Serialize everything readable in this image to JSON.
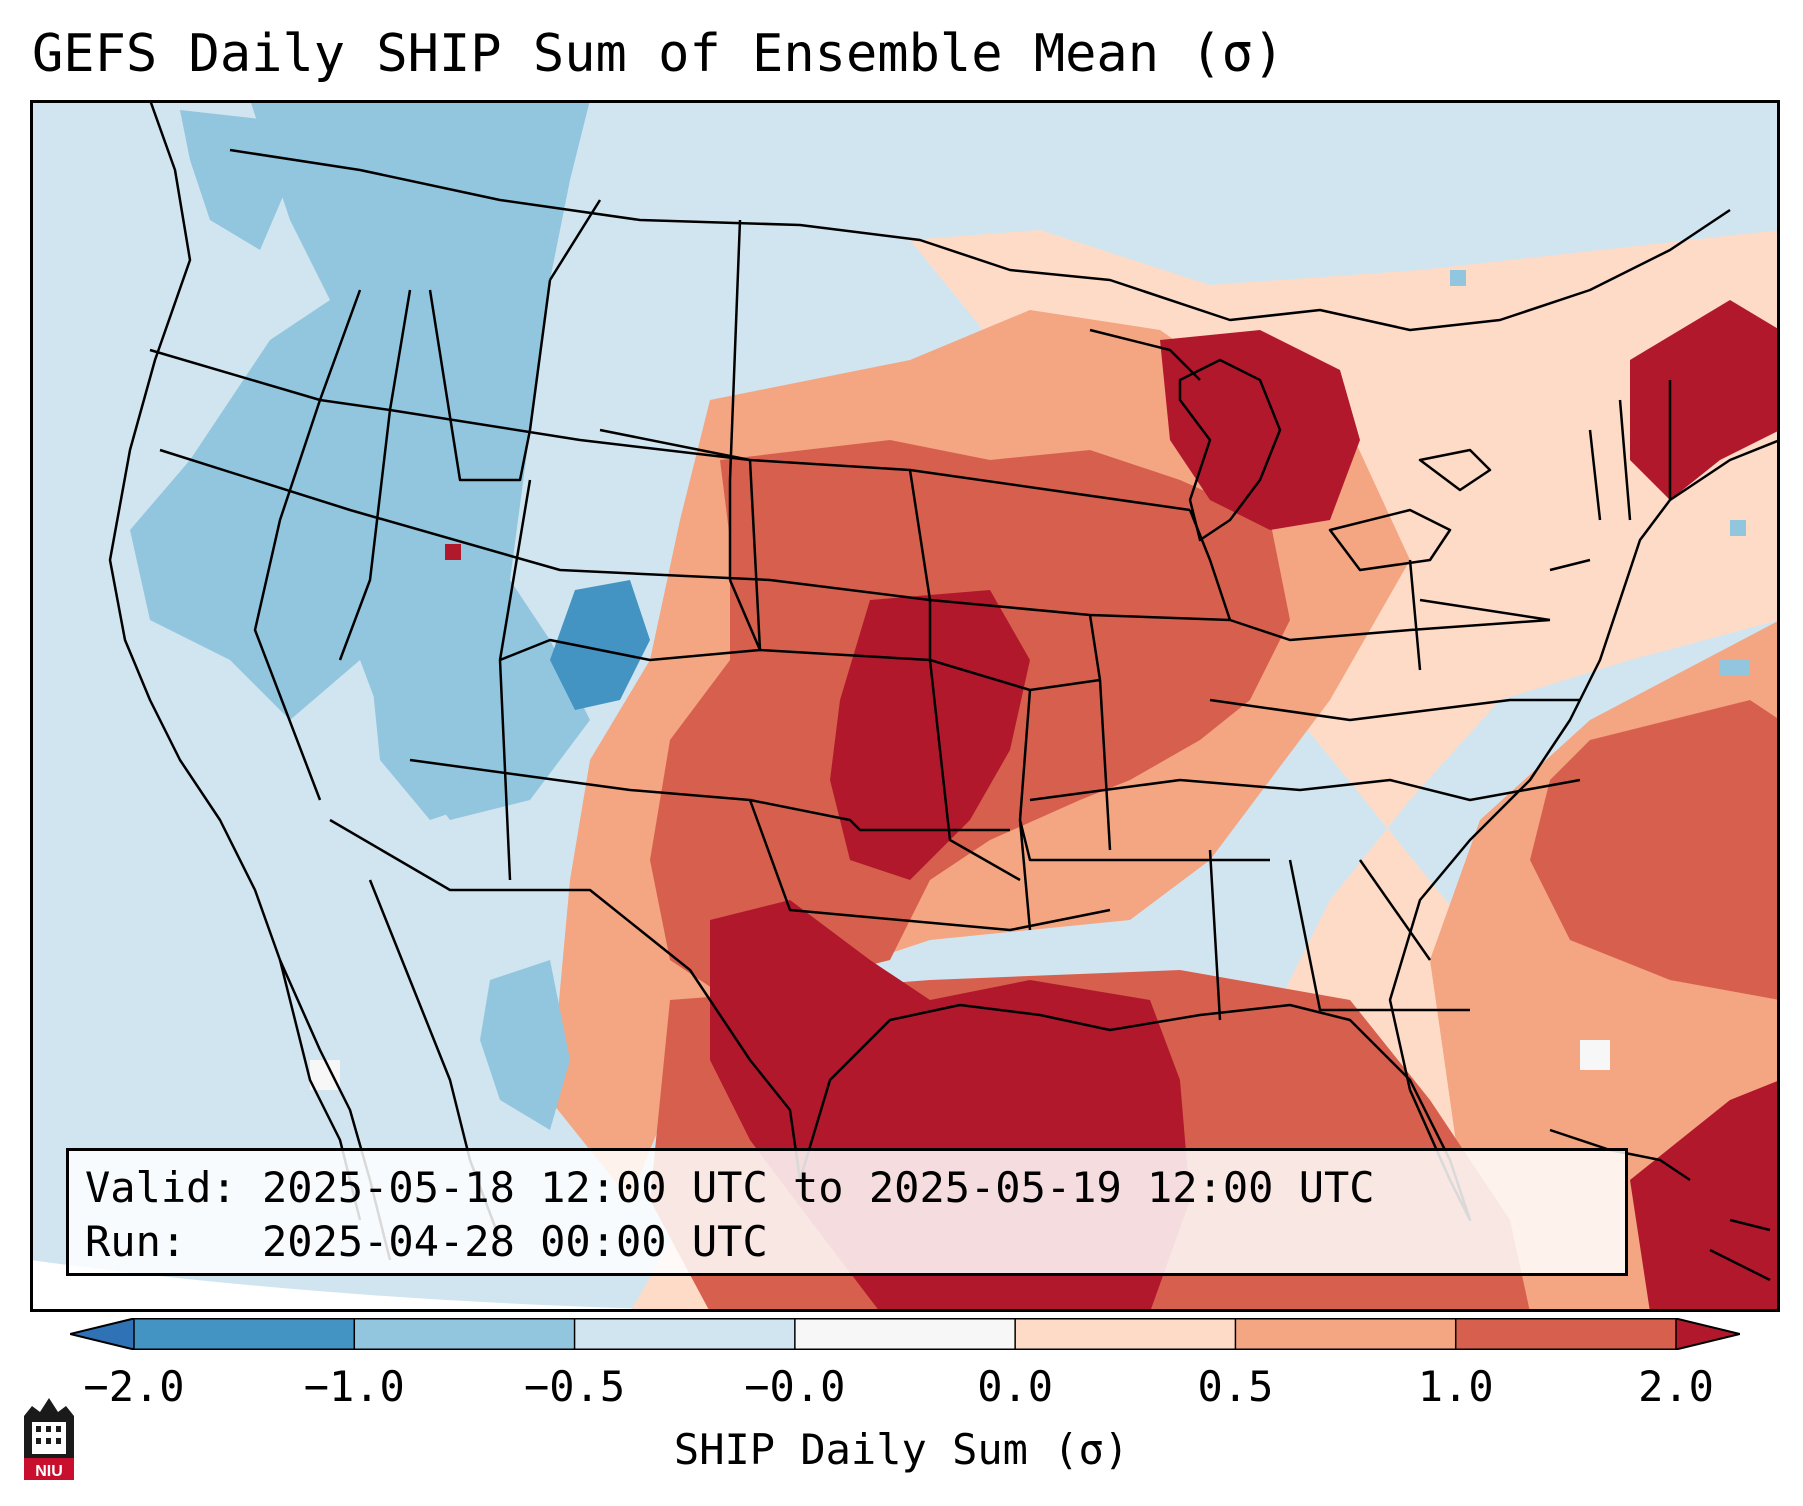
{
  "title": "GEFS Daily SHIP Sum of Ensemble Mean (σ)",
  "info_box": {
    "valid_line": "Valid: 2025-05-18 12:00 UTC to 2025-05-19 12:00 UTC",
    "run_line": "Run:   2025-04-28 00:00 UTC"
  },
  "colorbar": {
    "label": "SHIP Daily Sum (σ)",
    "ticks": [
      "−2.0",
      "−1.0",
      "−0.5",
      "−0.0",
      "0.0",
      "0.5",
      "1.0",
      "2.0"
    ],
    "colors": {
      "below_min": "#2f72b5",
      "bin_neg2_neg1": "#4393c3",
      "bin_neg1_neg05": "#92c5de",
      "bin_neg05_0": "#d1e5f0",
      "bin_0_0": "#f7f7f7",
      "bin_0_05": "#fddbc7",
      "bin_05_1": "#f4a582",
      "bin_1_2": "#d6604d",
      "above_max": "#b2182b"
    }
  },
  "logo": {
    "text": "NIU"
  }
}
